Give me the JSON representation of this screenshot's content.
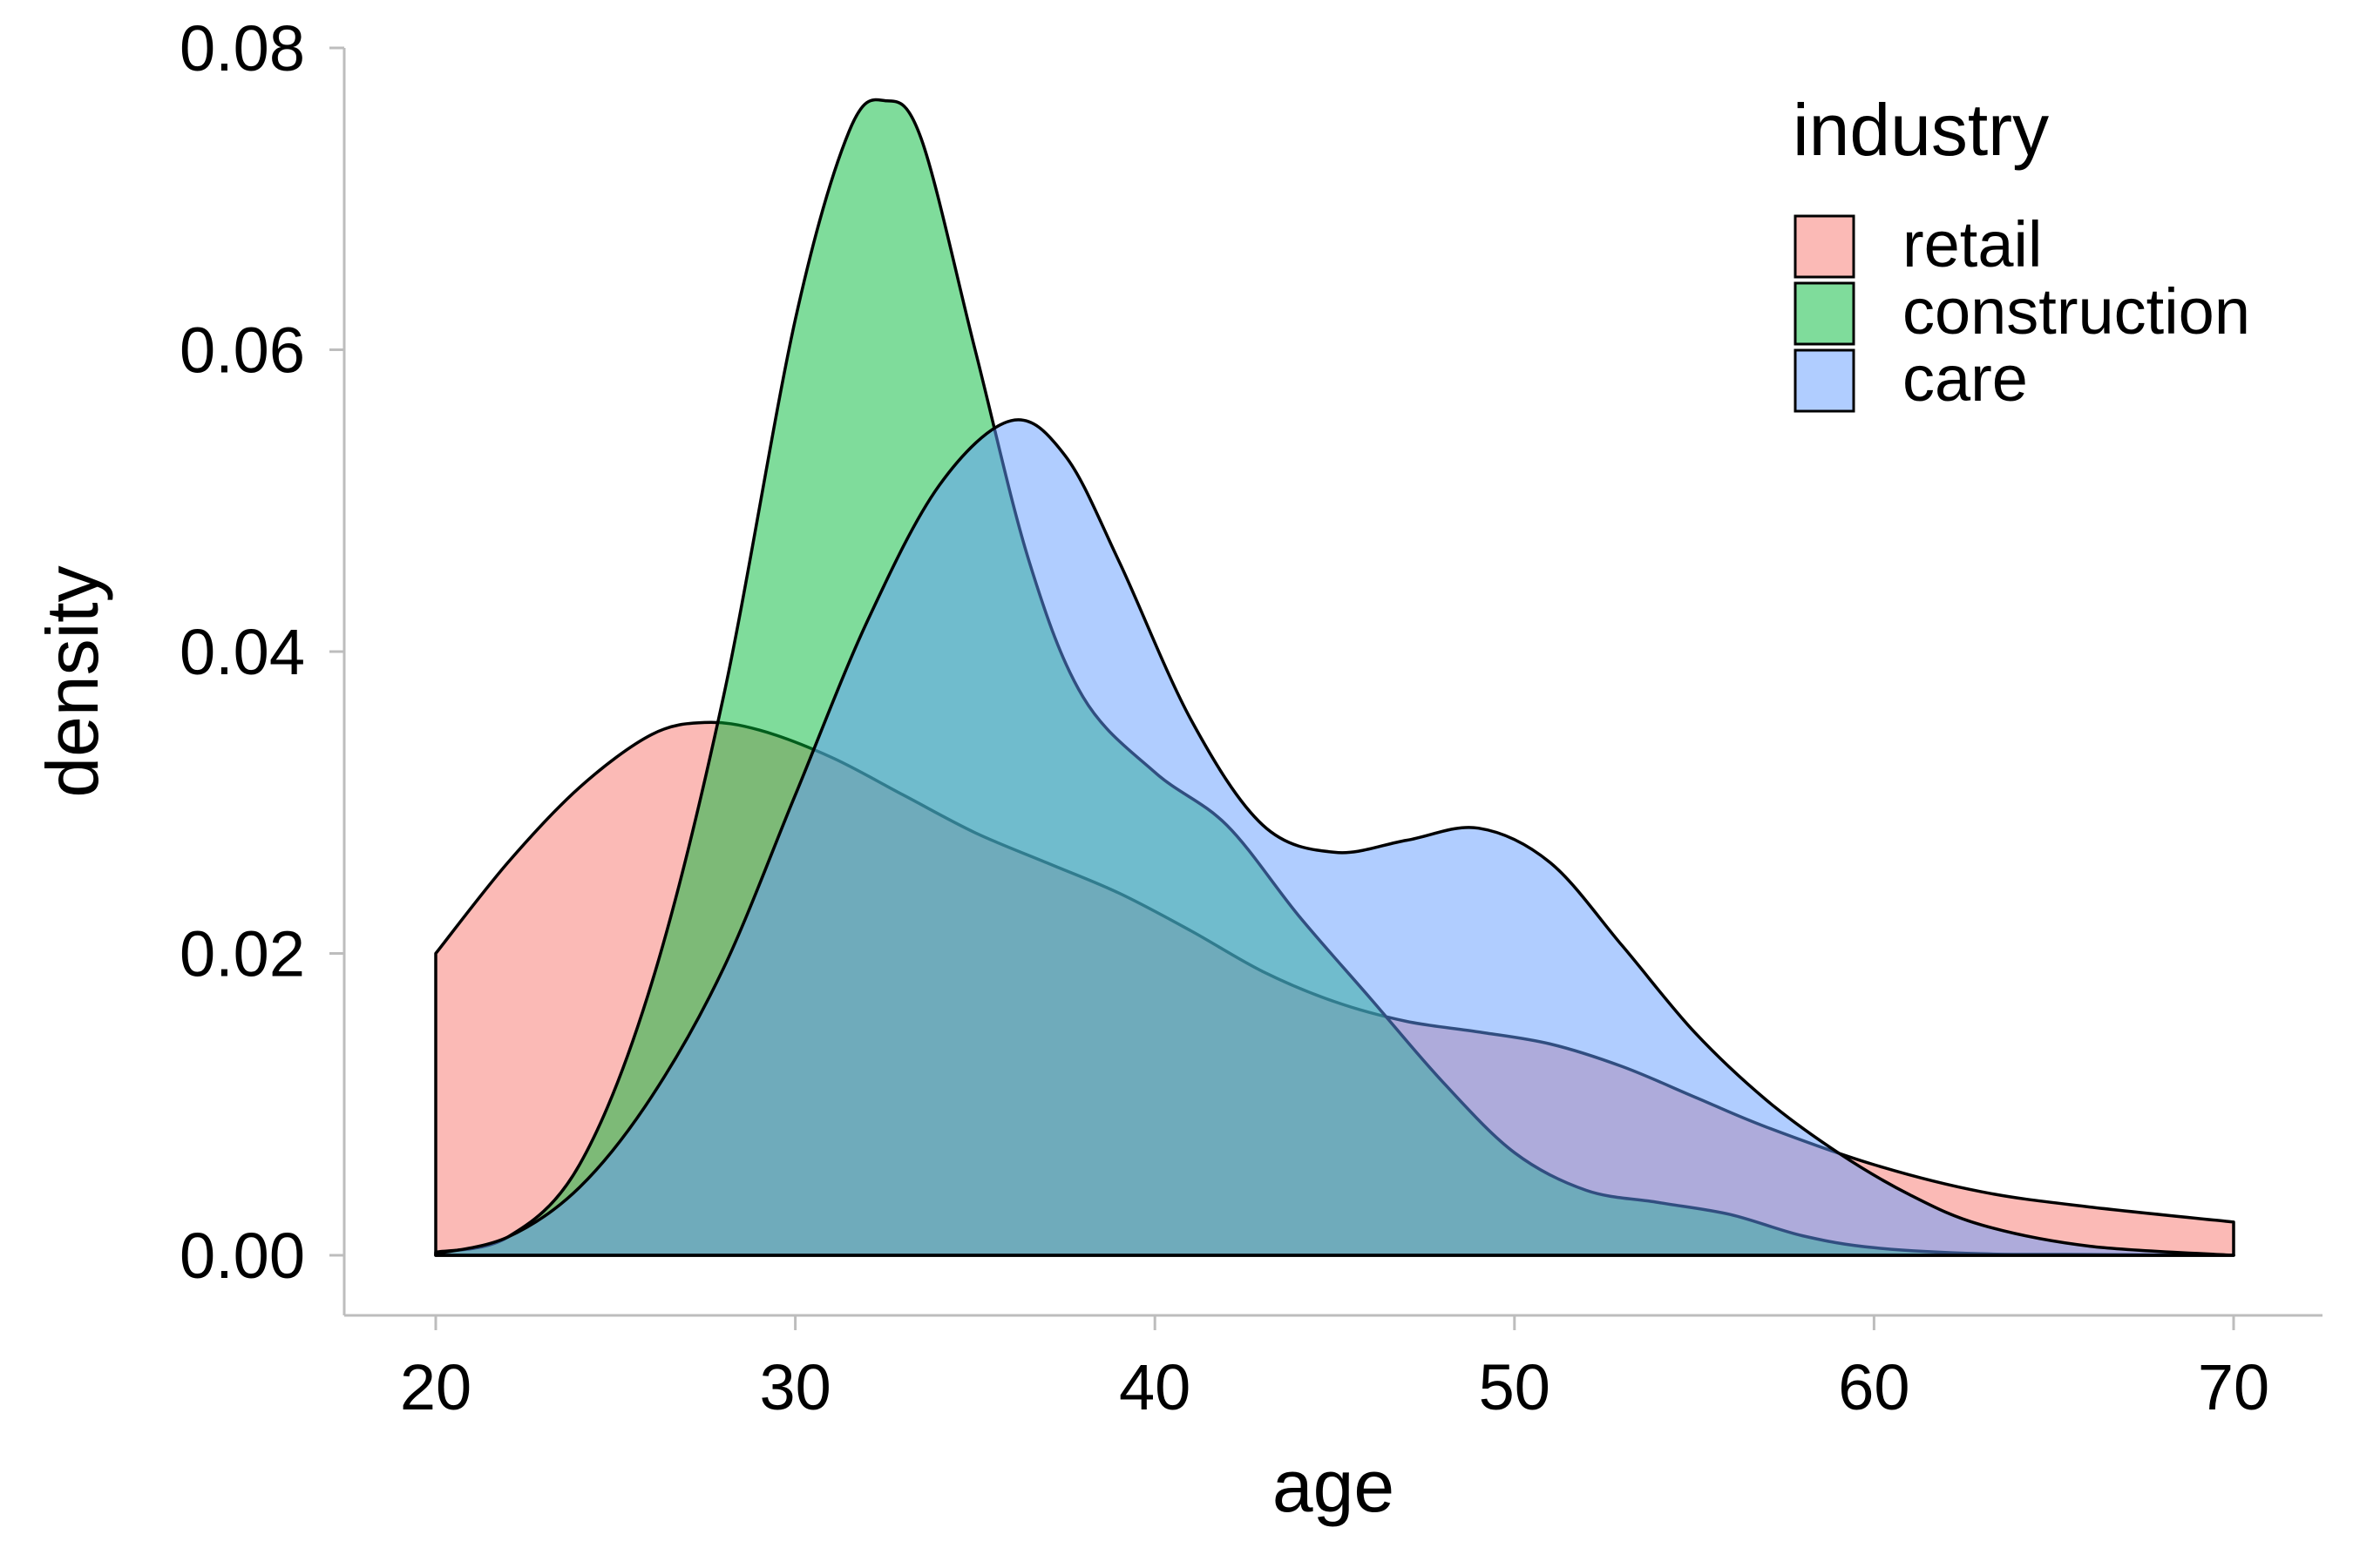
{
  "chart_data": {
    "type": "area",
    "subtype": "density",
    "xlabel": "age",
    "ylabel": "density",
    "xlim": [
      17.5,
      72
    ],
    "ylim": [
      -0.002,
      0.08
    ],
    "x_ticks": [
      20,
      30,
      40,
      50,
      60,
      70
    ],
    "y_ticks": [
      0.0,
      0.02,
      0.04,
      0.06,
      0.08
    ],
    "x_tick_labels": [
      "20",
      "30",
      "40",
      "50",
      "60",
      "70"
    ],
    "y_tick_labels": [
      "0.00",
      "0.02",
      "0.04",
      "0.06",
      "0.08"
    ],
    "grid": false,
    "legend": {
      "title": "industry",
      "position": "top-right"
    },
    "series": [
      {
        "name": "retail",
        "color": "#F8766D",
        "x": [
          20,
          22,
          24,
          26,
          27.5,
          29,
          31,
          33,
          35,
          37,
          39,
          41,
          43,
          45,
          47,
          49,
          51,
          53,
          55,
          57,
          60,
          63,
          66,
          70
        ],
        "y": [
          0.02,
          0.026,
          0.031,
          0.0345,
          0.0353,
          0.0348,
          0.033,
          0.0305,
          0.028,
          0.026,
          0.024,
          0.0215,
          0.0188,
          0.0168,
          0.0155,
          0.0148,
          0.014,
          0.0125,
          0.0105,
          0.0085,
          0.006,
          0.0042,
          0.0032,
          0.0022
        ]
      },
      {
        "name": "construction",
        "color": "#00BA38",
        "x": [
          20,
          22,
          24,
          26,
          28,
          30,
          31.5,
          32.5,
          33.5,
          35,
          36.5,
          38,
          40,
          42,
          44,
          46,
          48,
          50,
          52,
          54,
          56,
          58,
          60,
          63,
          66,
          70
        ],
        "y": [
          0.0002,
          0.0012,
          0.006,
          0.018,
          0.037,
          0.062,
          0.0745,
          0.0765,
          0.074,
          0.06,
          0.046,
          0.037,
          0.032,
          0.0285,
          0.0225,
          0.017,
          0.0115,
          0.0068,
          0.0043,
          0.0035,
          0.0027,
          0.0013,
          0.0005,
          0.0001,
          5e-05,
          0.0
        ]
      },
      {
        "name": "care",
        "color": "#619CFF",
        "x": [
          20,
          22,
          24,
          26,
          28,
          30,
          32,
          34,
          36,
          37.5,
          39,
          41,
          43,
          45,
          47,
          49,
          51,
          53,
          55,
          57,
          59,
          61,
          63,
          66,
          70
        ],
        "y": [
          0.0001,
          0.0012,
          0.0045,
          0.0105,
          0.019,
          0.0305,
          0.042,
          0.051,
          0.0553,
          0.053,
          0.046,
          0.0355,
          0.0285,
          0.0267,
          0.0275,
          0.0283,
          0.026,
          0.0205,
          0.0148,
          0.0103,
          0.0068,
          0.004,
          0.002,
          0.0006,
          0.0
        ]
      }
    ]
  }
}
